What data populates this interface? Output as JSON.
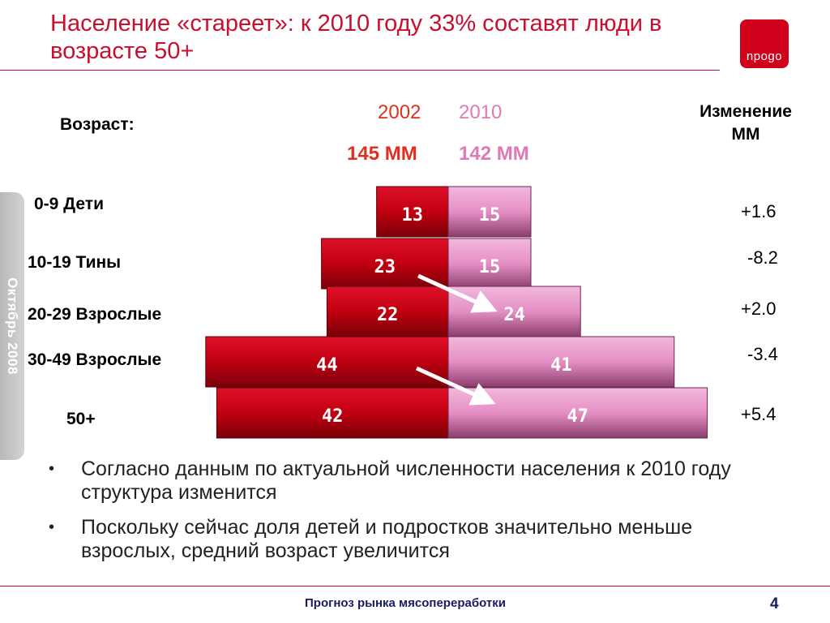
{
  "header": {
    "title": "Население «стареет»: к 2010 году 33% составят люди в возрасте 50+",
    "logo_text": "npogo"
  },
  "side_tab": {
    "label": "Октябрь 2008"
  },
  "table_head": {
    "age_label": "Возраст:",
    "year_2002": "2002",
    "year_2010": "2010",
    "total_2002": "145 MM",
    "total_2010": "142 MM",
    "change_label": "Изменение MM"
  },
  "chart_data": {
    "type": "bar",
    "categories": [
      "0-9 Дети",
      "10-19 Тины",
      "20-29 Взрослые",
      "30-49 Взрослые",
      "50+"
    ],
    "series": [
      {
        "name": "2002",
        "values": [
          13,
          23,
          22,
          44,
          42
        ],
        "color": "#c00010"
      },
      {
        "name": "2010",
        "values": [
          15,
          15,
          24,
          41,
          47
        ],
        "color": "#e58fc4"
      }
    ],
    "changes": [
      "+1.6",
      "-8.2",
      "+2.0",
      "-3.4",
      "+5.4"
    ]
  },
  "colors": {
    "accent": "#c8102e",
    "series_2002": "#c00010",
    "series_2010": "#e58fc4",
    "footer_text": "#1a1a60"
  },
  "bullets": [
    "Согласно данным по актуальной численности населения к 2010 году структура изменится",
    "Поскольку сейчас доля детей и подростков значительно меньше взрослых, средний возраст увеличится"
  ],
  "footer": {
    "text": "Прогноз рынка мясопереработки",
    "page": "4"
  }
}
